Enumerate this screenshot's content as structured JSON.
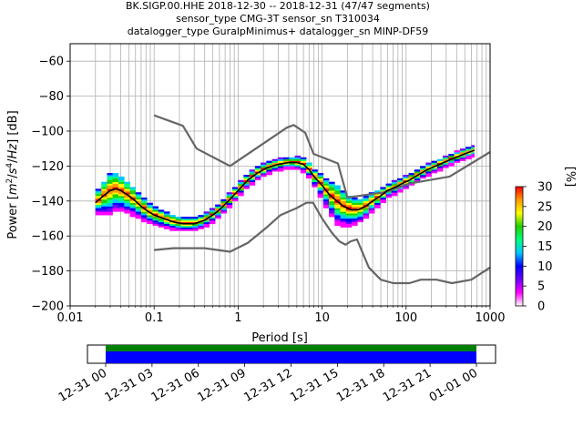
{
  "chart_data": {
    "type": "heatmap",
    "title_lines": [
      "BK.SIGP.00.HHE   2018-12-30 -- 2018-12-31  (47/47 segments)",
      "sensor_type CMG-3T sensor_sn T310034",
      "datalogger_type GuralpMinimus+ datalogger_sn MINP-DF59"
    ],
    "xlabel": "Period [s]",
    "ylabel": "Power [m²/s⁴/Hz] [dB]",
    "xscale": "log",
    "xlim": [
      0.01,
      1000
    ],
    "ylim": [
      -200,
      -50
    ],
    "x_ticks": [
      {
        "value": 0.01,
        "label": "0.01"
      },
      {
        "value": 0.1,
        "label": "0.1"
      },
      {
        "value": 1,
        "label": "1"
      },
      {
        "value": 10,
        "label": "10"
      },
      {
        "value": 100,
        "label": "100"
      },
      {
        "value": 1000,
        "label": "1000"
      }
    ],
    "y_ticks": [
      -60,
      -80,
      -100,
      -120,
      -140,
      -160,
      -180,
      -200
    ],
    "y_tick_labels": [
      "−60",
      "−80",
      "−100",
      "−120",
      "−140",
      "−160",
      "−180",
      "−200"
    ],
    "grid": true,
    "colorbar": {
      "label": "[%]",
      "min": 0,
      "max": 30,
      "ticks": [
        0,
        5,
        10,
        15,
        20,
        25,
        30
      ],
      "colors": [
        "#ffffff",
        "#ff00ff",
        "#6e00ff",
        "#0000ff",
        "#00c8ff",
        "#00ff7f",
        "#22d000",
        "#ffff00",
        "#ff9a00",
        "#ff0000"
      ]
    },
    "mode_curve": [
      [
        0.02,
        -141
      ],
      [
        0.025,
        -137
      ],
      [
        0.03,
        -134
      ],
      [
        0.035,
        -133
      ],
      [
        0.04,
        -134
      ],
      [
        0.05,
        -137
      ],
      [
        0.06,
        -140
      ],
      [
        0.07,
        -143
      ],
      [
        0.085,
        -146
      ],
      [
        0.1,
        -148
      ],
      [
        0.13,
        -150
      ],
      [
        0.17,
        -152
      ],
      [
        0.22,
        -153
      ],
      [
        0.3,
        -153
      ],
      [
        0.4,
        -151
      ],
      [
        0.5,
        -148
      ],
      [
        0.6,
        -145
      ],
      [
        0.8,
        -139
      ],
      [
        1.0,
        -134
      ],
      [
        1.3,
        -128
      ],
      [
        1.7,
        -124
      ],
      [
        2.2,
        -121
      ],
      [
        3,
        -119
      ],
      [
        4,
        -118
      ],
      [
        5,
        -118
      ],
      [
        6,
        -119
      ],
      [
        7,
        -122
      ],
      [
        8,
        -126
      ],
      [
        10,
        -131
      ],
      [
        12,
        -136
      ],
      [
        15,
        -140
      ],
      [
        18,
        -143
      ],
      [
        22,
        -145
      ],
      [
        27,
        -145
      ],
      [
        33,
        -143
      ],
      [
        40,
        -140
      ],
      [
        50,
        -137
      ],
      [
        60,
        -134
      ],
      [
        75,
        -132
      ],
      [
        90,
        -130
      ],
      [
        110,
        -128
      ],
      [
        140,
        -125
      ],
      [
        180,
        -122
      ],
      [
        250,
        -119
      ],
      [
        350,
        -116
      ],
      [
        500,
        -113
      ],
      [
        650,
        -111
      ]
    ],
    "nhnm": [
      [
        0.1,
        -168
      ],
      [
        0.17,
        -167
      ],
      [
        0.4,
        -167
      ],
      [
        0.8,
        -169
      ],
      [
        1.3,
        -164
      ],
      [
        2.2,
        -155
      ],
      [
        3.2,
        -148
      ],
      [
        5,
        -144
      ],
      [
        6.5,
        -141
      ],
      [
        7.8,
        -141
      ],
      [
        10,
        -150
      ],
      [
        13,
        -158
      ],
      [
        16,
        -163
      ],
      [
        19,
        -165
      ],
      [
        22,
        -163
      ],
      [
        26,
        -162
      ],
      [
        36,
        -178
      ],
      [
        50,
        -185
      ],
      [
        70,
        -187
      ],
      [
        110,
        -187
      ],
      [
        150,
        -185
      ],
      [
        230,
        -185
      ],
      [
        350,
        -187
      ],
      [
        600,
        -185
      ],
      [
        1000,
        -178
      ]
    ],
    "nlnm": [
      [
        0.1,
        -91
      ],
      [
        0.22,
        -97
      ],
      [
        0.32,
        -110
      ],
      [
        0.8,
        -120
      ],
      [
        3.8,
        -98
      ],
      [
        4.6,
        -96.5
      ],
      [
        6.3,
        -101
      ],
      [
        7.9,
        -113
      ],
      [
        15.4,
        -118.5
      ],
      [
        20,
        -138
      ],
      [
        55,
        -135
      ],
      [
        110,
        -130
      ],
      [
        330,
        -126
      ],
      [
        1000,
        -112
      ]
    ],
    "psd_density": {
      "period_bins": [
        0.02,
        0.0235,
        0.0275,
        0.032,
        0.0375,
        0.044,
        0.0515,
        0.06,
        0.07,
        0.082,
        0.096,
        0.112,
        0.131,
        0.153,
        0.179,
        0.209,
        0.244,
        0.285,
        0.333,
        0.389,
        0.455,
        0.532,
        0.622,
        0.727,
        0.85,
        0.993,
        1.16,
        1.356,
        1.585,
        1.853,
        2.166,
        2.532,
        2.96,
        3.46,
        4.044,
        4.727,
        5.525,
        6.458,
        7.549,
        8.824,
        10.31,
        12.05,
        14.09,
        16.47,
        19.25,
        22.5,
        26.3,
        30.74,
        35.93,
        42.0,
        49.09,
        57.38,
        67.07,
        78.4,
        91.64,
        107.1,
        125.2,
        146.4,
        171.1,
        200.0,
        233.8,
        273.3,
        319.5,
        373.4,
        436.5,
        510.2,
        596.4,
        650
      ],
      "spread_db": [
        [
          0.02,
          7
        ],
        [
          0.03,
          14
        ],
        [
          0.05,
          10
        ],
        [
          0.09,
          6
        ],
        [
          0.2,
          4
        ],
        [
          0.5,
          4
        ],
        [
          1.5,
          4
        ],
        [
          4,
          3
        ],
        [
          8,
          5
        ],
        [
          15,
          13
        ],
        [
          30,
          7
        ],
        [
          60,
          4
        ],
        [
          300,
          3
        ],
        [
          650,
          3
        ]
      ]
    }
  }
}
